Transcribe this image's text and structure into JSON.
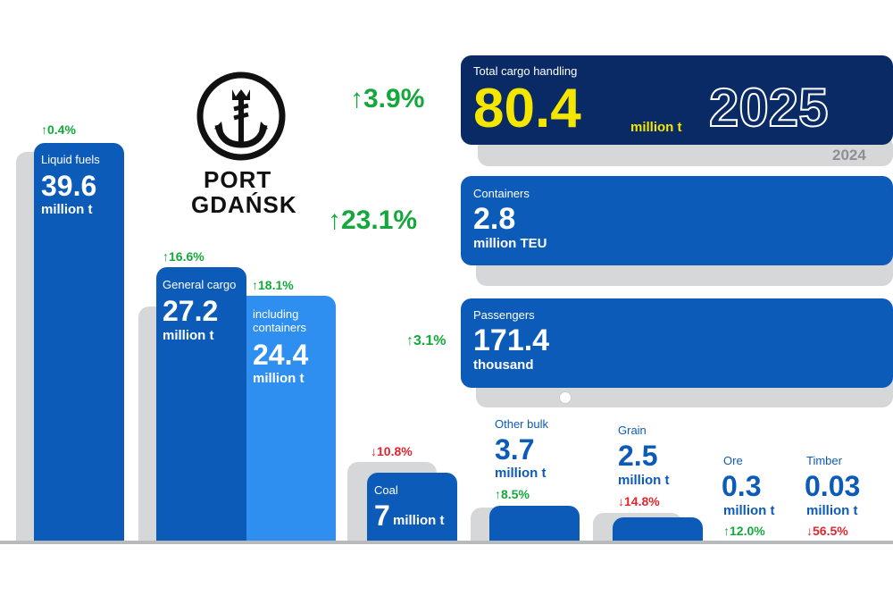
{
  "logo": {
    "name_line1": "PORT",
    "name_line2": "GDAŃSK"
  },
  "total": {
    "label": "Total cargo handling",
    "value": "80.4",
    "unit": "million t",
    "year": "2025",
    "prev_year": "2024",
    "change": "3.9%",
    "direction": "up"
  },
  "containers": {
    "label": "Containers",
    "value": "2.8",
    "unit": "million TEU",
    "change": "23.1%",
    "direction": "up"
  },
  "passengers": {
    "label": "Passengers",
    "value": "171.4",
    "unit": "thousand",
    "change": "3.1%",
    "direction": "up"
  },
  "liquid_fuels": {
    "label": "Liquid fuels",
    "value": "39.6",
    "unit": "million t",
    "change": "0.4%",
    "direction": "up"
  },
  "general_cargo": {
    "label": "General cargo",
    "value": "27.2",
    "unit": "million t",
    "change": "16.6%",
    "direction": "up"
  },
  "including_containers": {
    "label_line1": "including",
    "label_line2": "containers",
    "value": "24.4",
    "unit": "million t",
    "change": "18.1%",
    "direction": "up"
  },
  "coal": {
    "label": "Coal",
    "value": "7",
    "unit": "million t",
    "change": "10.8%",
    "direction": "down"
  },
  "other_bulk": {
    "label": "Other bulk",
    "value": "3.7",
    "unit": "million t",
    "change": "8.5%",
    "direction": "up"
  },
  "grain": {
    "label": "Grain",
    "value": "2.5",
    "unit": "million t",
    "change": "14.8%",
    "direction": "down"
  },
  "ore": {
    "label": "Ore",
    "value": "0.3",
    "unit": "million t",
    "change": "12.0%",
    "direction": "up"
  },
  "timber": {
    "label": "Timber",
    "value": "0.03",
    "unit": "million t",
    "change": "56.5%",
    "direction": "down"
  },
  "chart_data": {
    "type": "bar",
    "categories": [
      "Liquid fuels",
      "General cargo",
      "including containers",
      "Coal",
      "Other bulk",
      "Grain",
      "Ore",
      "Timber"
    ],
    "values": [
      39.6,
      27.2,
      24.4,
      7,
      3.7,
      2.5,
      0.3,
      0.03
    ],
    "change_percent": [
      0.4,
      16.6,
      18.1,
      -10.8,
      8.5,
      -14.8,
      12.0,
      -56.5
    ],
    "unit": "million t",
    "summary": [
      {
        "label": "Total cargo handling",
        "value": 80.4,
        "unit": "million t",
        "change_percent": 3.9
      },
      {
        "label": "Containers",
        "value": 2.8,
        "unit": "million TEU",
        "change_percent": 23.1
      },
      {
        "label": "Passengers",
        "value": 171.4,
        "unit": "thousand",
        "change_percent": 3.1
      }
    ],
    "years": [
      "2025",
      "2024"
    ],
    "colors": {
      "primary": "#0d5bb8",
      "secondary": "#2f8ff0",
      "header": "#0a2a66",
      "previous_year": "#d6d7d9",
      "increase": "#14a83c",
      "decrease": "#e0262e",
      "highlight": "#f5e600"
    }
  }
}
